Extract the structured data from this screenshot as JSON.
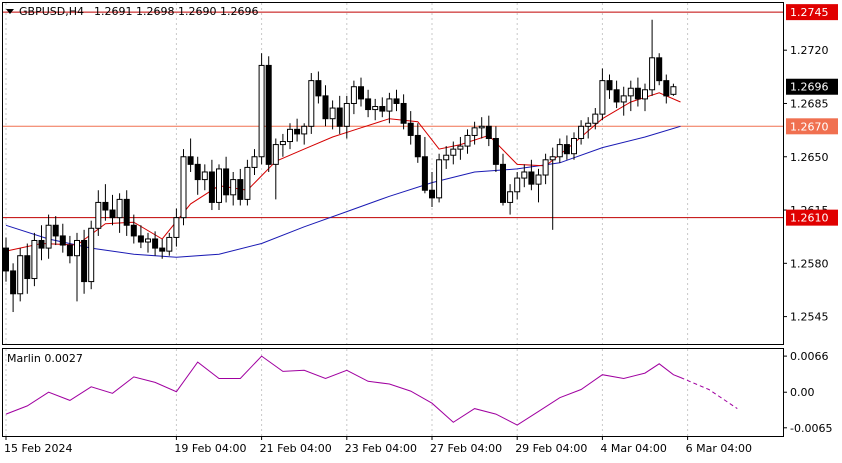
{
  "header": {
    "symbol": "GBPUSD,H4",
    "ohlc": "1.2691 1.2698 1.2690 1.2696"
  },
  "indicator_label": "Marlin 0.0027",
  "colors": {
    "bull_body": "#ffffff",
    "bear_body": "#000000",
    "ma_fast": "#d40000",
    "ma_slow": "#1a1ab4",
    "level_line": "#c00000",
    "level_line_light": "#f07050",
    "level_label_bg": "#e00000",
    "current_price_bg": "#000000",
    "oscillator": "#a000a0"
  },
  "chart_data": [
    {
      "type": "candlestick",
      "name": "GBPUSD,H4",
      "y_ticks": [
        "1.2545",
        "1.2580",
        "1.2615",
        "1.2650",
        "1.2685",
        "1.2720"
      ],
      "ylim": [
        1.2527,
        1.2751
      ],
      "x_ticks": [
        {
          "index": 0,
          "label": "15 Feb 2024"
        },
        {
          "index": 24,
          "label": "19 Feb 04:00"
        },
        {
          "index": 36,
          "label": "21 Feb 04:00"
        },
        {
          "index": 48,
          "label": "23 Feb 04:00"
        },
        {
          "index": 60,
          "label": "27 Feb 04:00"
        },
        {
          "index": 72,
          "label": "29 Feb 04:00"
        },
        {
          "index": 84,
          "label": "4 Mar 04:00"
        },
        {
          "index": 96,
          "label": "6 Mar 04:00"
        }
      ],
      "bar_count": 110,
      "levels": [
        {
          "value": 1.2745,
          "label": "1.2745",
          "style": "red"
        },
        {
          "value": 1.267,
          "label": "1.2670",
          "style": "light"
        },
        {
          "value": 1.261,
          "label": "1.2610",
          "style": "red"
        }
      ],
      "current_price": {
        "value": 1.2696,
        "label": "1.2696"
      },
      "ohlc": [
        [
          1.259,
          1.2597,
          1.2568,
          1.2575
        ],
        [
          1.2575,
          1.258,
          1.2548,
          1.256
        ],
        [
          1.256,
          1.259,
          1.2555,
          1.2585
        ],
        [
          1.2585,
          1.2593,
          1.256,
          1.257
        ],
        [
          1.257,
          1.26,
          1.2565,
          1.2595
        ],
        [
          1.2595,
          1.2605,
          1.2582,
          1.259
        ],
        [
          1.259,
          1.2612,
          1.2583,
          1.2605
        ],
        [
          1.2605,
          1.2611,
          1.2592,
          1.2598
        ],
        [
          1.2598,
          1.2606,
          1.2587,
          1.2592
        ],
        [
          1.2592,
          1.2598,
          1.258,
          1.2585
        ],
        [
          1.2585,
          1.26,
          1.2555,
          1.2595
        ],
        [
          1.2595,
          1.2602,
          1.256,
          1.2568
        ],
        [
          1.2568,
          1.2608,
          1.2563,
          1.2603
        ],
        [
          1.2603,
          1.2628,
          1.2598,
          1.262
        ],
        [
          1.262,
          1.2632,
          1.2608,
          1.2615
        ],
        [
          1.2615,
          1.2625,
          1.2605,
          1.261
        ],
        [
          1.261,
          1.2626,
          1.26,
          1.2622
        ],
        [
          1.2622,
          1.2628,
          1.2598,
          1.2605
        ],
        [
          1.2605,
          1.2612,
          1.2593,
          1.2598
        ],
        [
          1.2598,
          1.2605,
          1.259,
          1.2594
        ],
        [
          1.2594,
          1.26,
          1.2587,
          1.2596
        ],
        [
          1.2596,
          1.2601,
          1.2585,
          1.259
        ],
        [
          1.259,
          1.2596,
          1.2583,
          1.2588
        ],
        [
          1.2588,
          1.26,
          1.2585,
          1.2597
        ],
        [
          1.2597,
          1.2616,
          1.2591,
          1.261
        ],
        [
          1.261,
          1.2655,
          1.2605,
          1.265
        ],
        [
          1.265,
          1.2662,
          1.264,
          1.2645
        ],
        [
          1.2645,
          1.265,
          1.2625,
          1.2635
        ],
        [
          1.2635,
          1.2645,
          1.2628,
          1.264
        ],
        [
          1.264,
          1.2648,
          1.2615,
          1.262
        ],
        [
          1.262,
          1.2645,
          1.2615,
          1.2642
        ],
        [
          1.2642,
          1.265,
          1.262,
          1.2625
        ],
        [
          1.2625,
          1.264,
          1.2618,
          1.2635
        ],
        [
          1.2635,
          1.2642,
          1.2618,
          1.2622
        ],
        [
          1.2622,
          1.2648,
          1.2618,
          1.2643
        ],
        [
          1.2643,
          1.2655,
          1.2638,
          1.265
        ],
        [
          1.265,
          1.2718,
          1.2645,
          1.271
        ],
        [
          1.271,
          1.2716,
          1.264,
          1.2645
        ],
        [
          1.2645,
          1.2662,
          1.2622,
          1.2658
        ],
        [
          1.2658,
          1.2665,
          1.265,
          1.266
        ],
        [
          1.266,
          1.2672,
          1.2655,
          1.2668
        ],
        [
          1.2668,
          1.2675,
          1.266,
          1.2665
        ],
        [
          1.2665,
          1.2672,
          1.2658,
          1.267
        ],
        [
          1.267,
          1.2705,
          1.2665,
          1.27
        ],
        [
          1.27,
          1.2706,
          1.2685,
          1.269
        ],
        [
          1.269,
          1.2697,
          1.267,
          1.2675
        ],
        [
          1.2675,
          1.2687,
          1.2668,
          1.2682
        ],
        [
          1.2682,
          1.269,
          1.2665,
          1.267
        ],
        [
          1.267,
          1.269,
          1.2662,
          1.2685
        ],
        [
          1.2685,
          1.27,
          1.2678,
          1.2696
        ],
        [
          1.2696,
          1.2702,
          1.2683,
          1.2688
        ],
        [
          1.2688,
          1.2694,
          1.2676,
          1.2681
        ],
        [
          1.2681,
          1.2688,
          1.2674,
          1.2683
        ],
        [
          1.2683,
          1.2689,
          1.2676,
          1.268
        ],
        [
          1.268,
          1.2692,
          1.2672,
          1.2688
        ],
        [
          1.2688,
          1.2694,
          1.268,
          1.2685
        ],
        [
          1.2685,
          1.2691,
          1.2668,
          1.2672
        ],
        [
          1.2672,
          1.268,
          1.2658,
          1.2664
        ],
        [
          1.2664,
          1.2672,
          1.2646,
          1.265
        ],
        [
          1.265,
          1.2663,
          1.2626,
          1.2628
        ],
        [
          1.2628,
          1.264,
          1.2617,
          1.2623
        ],
        [
          1.2623,
          1.2652,
          1.262,
          1.2648
        ],
        [
          1.2648,
          1.2657,
          1.2642,
          1.2651
        ],
        [
          1.2651,
          1.266,
          1.2645,
          1.2655
        ],
        [
          1.2655,
          1.2663,
          1.2648,
          1.2657
        ],
        [
          1.2657,
          1.2668,
          1.2652,
          1.2664
        ],
        [
          1.2664,
          1.2673,
          1.2658,
          1.2669
        ],
        [
          1.2669,
          1.2676,
          1.2662,
          1.267
        ],
        [
          1.267,
          1.2677,
          1.2657,
          1.2662
        ],
        [
          1.2662,
          1.267,
          1.264,
          1.2645
        ],
        [
          1.2645,
          1.2652,
          1.2618,
          1.262
        ],
        [
          1.262,
          1.2632,
          1.2612,
          1.2627
        ],
        [
          1.2627,
          1.264,
          1.2622,
          1.2636
        ],
        [
          1.2636,
          1.2645,
          1.263,
          1.264
        ],
        [
          1.264,
          1.2648,
          1.2628,
          1.2632
        ],
        [
          1.2632,
          1.2642,
          1.262,
          1.2638
        ],
        [
          1.2638,
          1.2652,
          1.2632,
          1.2648
        ],
        [
          1.2648,
          1.2656,
          1.2602,
          1.265
        ],
        [
          1.265,
          1.2662,
          1.2646,
          1.2658
        ],
        [
          1.2658,
          1.2664,
          1.2648,
          1.2652
        ],
        [
          1.2652,
          1.2666,
          1.2648,
          1.2662
        ],
        [
          1.2662,
          1.2674,
          1.2658,
          1.267
        ],
        [
          1.267,
          1.2676,
          1.2662,
          1.2672
        ],
        [
          1.2672,
          1.2682,
          1.2668,
          1.2678
        ],
        [
          1.2678,
          1.2708,
          1.2674,
          1.27
        ],
        [
          1.27,
          1.2704,
          1.2688,
          1.2694
        ],
        [
          1.2694,
          1.27,
          1.2682,
          1.2686
        ],
        [
          1.2686,
          1.2696,
          1.2677,
          1.269
        ],
        [
          1.269,
          1.27,
          1.268,
          1.2695
        ],
        [
          1.2695,
          1.2702,
          1.2683,
          1.2688
        ],
        [
          1.2688,
          1.2698,
          1.268,
          1.2694
        ],
        [
          1.2694,
          1.274,
          1.269,
          1.2715
        ],
        [
          1.2715,
          1.2718,
          1.2697,
          1.27
        ],
        [
          1.27,
          1.2704,
          1.2685,
          1.269
        ],
        [
          1.2691,
          1.2698,
          1.269,
          1.2696
        ]
      ],
      "ma_fast": [
        {
          "i": 0,
          "v": 1.2588
        },
        {
          "i": 5,
          "v": 1.2593
        },
        {
          "i": 10,
          "v": 1.2592
        },
        {
          "i": 14,
          "v": 1.2606
        },
        {
          "i": 18,
          "v": 1.2607
        },
        {
          "i": 22,
          "v": 1.2596
        },
        {
          "i": 26,
          "v": 1.2619
        },
        {
          "i": 30,
          "v": 1.2631
        },
        {
          "i": 34,
          "v": 1.2628
        },
        {
          "i": 38,
          "v": 1.2647
        },
        {
          "i": 42,
          "v": 1.2655
        },
        {
          "i": 46,
          "v": 1.2663
        },
        {
          "i": 50,
          "v": 1.2669
        },
        {
          "i": 54,
          "v": 1.2675
        },
        {
          "i": 58,
          "v": 1.2673
        },
        {
          "i": 61,
          "v": 1.2655
        },
        {
          "i": 64,
          "v": 1.2658
        },
        {
          "i": 68,
          "v": 1.2664
        },
        {
          "i": 72,
          "v": 1.2645
        },
        {
          "i": 76,
          "v": 1.2644
        },
        {
          "i": 80,
          "v": 1.2659
        },
        {
          "i": 84,
          "v": 1.2675
        },
        {
          "i": 88,
          "v": 1.2686
        },
        {
          "i": 92,
          "v": 1.2692
        },
        {
          "i": 95,
          "v": 1.2686
        }
      ],
      "ma_slow": [
        {
          "i": 0,
          "v": 1.2605
        },
        {
          "i": 6,
          "v": 1.2596
        },
        {
          "i": 12,
          "v": 1.259
        },
        {
          "i": 18,
          "v": 1.2586
        },
        {
          "i": 24,
          "v": 1.2584
        },
        {
          "i": 30,
          "v": 1.2586
        },
        {
          "i": 36,
          "v": 1.2593
        },
        {
          "i": 42,
          "v": 1.2604
        },
        {
          "i": 48,
          "v": 1.2614
        },
        {
          "i": 54,
          "v": 1.2624
        },
        {
          "i": 60,
          "v": 1.2633
        },
        {
          "i": 66,
          "v": 1.264
        },
        {
          "i": 72,
          "v": 1.2642
        },
        {
          "i": 78,
          "v": 1.2646
        },
        {
          "i": 84,
          "v": 1.2656
        },
        {
          "i": 90,
          "v": 1.2663
        },
        {
          "i": 95,
          "v": 1.267
        }
      ]
    },
    {
      "type": "line",
      "name": "Marlin",
      "y_ticks": [
        "0.0066",
        "0.00",
        "-0.0065"
      ],
      "ylim": [
        -0.008,
        0.0079
      ],
      "values": [
        {
          "i": 0,
          "v": -0.004
        },
        {
          "i": 3,
          "v": -0.0025
        },
        {
          "i": 6,
          "v": 0.0
        },
        {
          "i": 9,
          "v": -0.0015
        },
        {
          "i": 12,
          "v": 0.001
        },
        {
          "i": 15,
          "v": -0.0002
        },
        {
          "i": 18,
          "v": 0.0028
        },
        {
          "i": 21,
          "v": 0.0018
        },
        {
          "i": 24,
          "v": 0.0001
        },
        {
          "i": 27,
          "v": 0.0055
        },
        {
          "i": 30,
          "v": 0.0025
        },
        {
          "i": 33,
          "v": 0.0025
        },
        {
          "i": 36,
          "v": 0.0066
        },
        {
          "i": 39,
          "v": 0.0038
        },
        {
          "i": 42,
          "v": 0.004
        },
        {
          "i": 45,
          "v": 0.0025
        },
        {
          "i": 48,
          "v": 0.004
        },
        {
          "i": 51,
          "v": 0.002
        },
        {
          "i": 54,
          "v": 0.0015
        },
        {
          "i": 57,
          "v": 0.0002
        },
        {
          "i": 60,
          "v": -0.002
        },
        {
          "i": 63,
          "v": -0.0055
        },
        {
          "i": 66,
          "v": -0.003
        },
        {
          "i": 69,
          "v": -0.004
        },
        {
          "i": 72,
          "v": -0.006
        },
        {
          "i": 75,
          "v": -0.0035
        },
        {
          "i": 78,
          "v": -0.001
        },
        {
          "i": 81,
          "v": 0.0005
        },
        {
          "i": 84,
          "v": 0.0032
        },
        {
          "i": 87,
          "v": 0.0025
        },
        {
          "i": 90,
          "v": 0.0035
        },
        {
          "i": 92,
          "v": 0.0052
        },
        {
          "i": 94,
          "v": 0.0032
        },
        {
          "i": 95,
          "v": 0.0027
        }
      ],
      "projection": [
        {
          "i": 95,
          "v": 0.0027
        },
        {
          "i": 99,
          "v": 0.0005
        },
        {
          "i": 103,
          "v": -0.003
        }
      ]
    }
  ]
}
